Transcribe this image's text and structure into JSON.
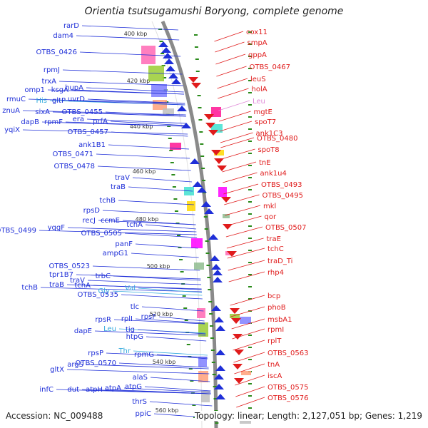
{
  "title": "Orientia tsutsugamushi Boryong, complete genome",
  "accession": "Accession: NC_009488",
  "summary": "Topology: linear; Length: 2,127,051 bp; Genes: 1,219",
  "colors": {
    "blue_strand": "#1f2fd8",
    "red_strand": "#e01b1b",
    "trna_blue": "#33aadd",
    "trna_pink": "#e08ad8",
    "tick": "#2a8a1a",
    "backbone": "#8a8a8a"
  },
  "scale_labels": [
    "400 kbp",
    "420 kbp",
    "440 kbp",
    "460 kbp",
    "480 kbp",
    "500 kbp",
    "520 kbp",
    "540 kbp",
    "560 kbp"
  ],
  "left_labels": [
    "rarD",
    "dam4",
    "OTBS_0426",
    "rpmJ",
    "trxA",
    "omp1",
    "ksgA",
    "hupA",
    "rmuC",
    "His",
    "gltP",
    "uvrD",
    "znuA",
    "sixA",
    "OTBS_0455",
    "dapB",
    "rpmF",
    "era",
    "yqiX",
    "OTBS_0457",
    "prfA",
    "ank1B1",
    "OTBS_0471",
    "OTBS_0478",
    "traV",
    "traB",
    "tchB",
    "rpsD",
    "recJ",
    "ccmE",
    "OTBS_0499",
    "yqgF",
    "tchA",
    "OTBS_0505",
    "panF",
    "ampG1",
    "OTBS_0523",
    "tpr1B7",
    "trbC",
    "traV",
    "tchB",
    "traB",
    "tchA",
    "Gly",
    "Val",
    "OTBS_0535",
    "tlc",
    "rpsR",
    "rplI",
    "rpsF",
    "dapE",
    "Leu",
    "tig",
    "htpG",
    "rpsP",
    "Thr",
    "rpmG",
    "argS",
    "OTBS_0570",
    "gltX",
    "alaS",
    "infC",
    "dut",
    "atpH",
    "atpA",
    "atpG",
    "thrS",
    "ppiC"
  ],
  "right_labels": [
    "cox11",
    "smpA",
    "gppA",
    "OTBS_0467",
    "leuS",
    "holA",
    "Leu",
    "mgtE",
    "spoT7",
    "ank1C3",
    "OTBS_0480",
    "spoT8",
    "tnE",
    "ank1u4",
    "OTBS_0493",
    "OTBS_0495",
    "mkl",
    "qor",
    "OTBS_0507",
    "traE",
    "tchC",
    "traD_Ti",
    "rhp4",
    "bcp",
    "phoB",
    "msbA1",
    "rpmI",
    "rplT",
    "OTBS_0563",
    "tnA",
    "iscA",
    "OTBS_0575",
    "OTBS_0576"
  ]
}
